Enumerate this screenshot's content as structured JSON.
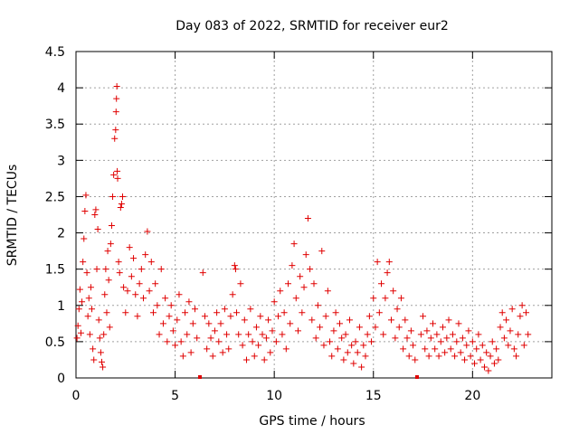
{
  "chart_data": {
    "type": "scatter",
    "title": "Day 083 of 2022, SRMTID for receiver eur2",
    "xlabel": "GPS time / hours",
    "ylabel": "SRMTID / TECUs",
    "xlim": [
      0,
      24
    ],
    "ylim": [
      0,
      4.5
    ],
    "x_ticks": [
      0,
      5,
      10,
      15,
      20
    ],
    "y_ticks": [
      0,
      0.5,
      1,
      1.5,
      2,
      2.5,
      3,
      3.5,
      4,
      4.5
    ],
    "x_tick_labels": [
      "0",
      "5",
      "10",
      "15",
      "20"
    ],
    "y_tick_labels": [
      "0",
      "0.5",
      "1",
      "1.5",
      "2",
      "2.5",
      "3",
      "3.5",
      "4",
      "4.5"
    ],
    "grid": true,
    "marker": "+",
    "series_color": "#e00000",
    "gap_markers_x": [
      6.25,
      17.2
    ],
    "series": [
      {
        "name": "SRMTID",
        "points": [
          [
            0.05,
            0.55
          ],
          [
            0.1,
            0.72
          ],
          [
            0.15,
            0.95
          ],
          [
            0.2,
            1.22
          ],
          [
            0.25,
            0.62
          ],
          [
            0.3,
            1.05
          ],
          [
            0.35,
            1.6
          ],
          [
            0.4,
            1.92
          ],
          [
            0.45,
            2.3
          ],
          [
            0.5,
            2.52
          ],
          [
            0.55,
            1.45
          ],
          [
            0.6,
            0.85
          ],
          [
            0.65,
            1.1
          ],
          [
            0.7,
            0.6
          ],
          [
            0.75,
            1.25
          ],
          [
            0.8,
            0.95
          ],
          [
            0.85,
            0.4
          ],
          [
            0.9,
            0.25
          ],
          [
            0.95,
            2.25
          ],
          [
            1.0,
            2.32
          ],
          [
            1.05,
            1.5
          ],
          [
            1.1,
            2.05
          ],
          [
            1.15,
            0.8
          ],
          [
            1.2,
            0.55
          ],
          [
            1.25,
            0.35
          ],
          [
            1.3,
            0.22
          ],
          [
            1.35,
            0.15
          ],
          [
            1.4,
            0.6
          ],
          [
            1.45,
            1.15
          ],
          [
            1.5,
            1.5
          ],
          [
            1.55,
            0.9
          ],
          [
            1.6,
            1.75
          ],
          [
            1.65,
            1.35
          ],
          [
            1.7,
            0.7
          ],
          [
            1.75,
            1.85
          ],
          [
            1.8,
            2.1
          ],
          [
            1.85,
            2.5
          ],
          [
            1.9,
            2.8
          ],
          [
            1.95,
            3.3
          ],
          [
            2.0,
            3.42
          ],
          [
            2.02,
            3.67
          ],
          [
            2.04,
            3.85
          ],
          [
            2.06,
            4.02
          ],
          [
            2.08,
            2.85
          ],
          [
            2.1,
            2.75
          ],
          [
            2.15,
            1.6
          ],
          [
            2.2,
            1.45
          ],
          [
            2.25,
            2.35
          ],
          [
            2.3,
            2.4
          ],
          [
            2.35,
            2.5
          ],
          [
            2.4,
            1.25
          ],
          [
            2.5,
            0.9
          ],
          [
            2.6,
            1.2
          ],
          [
            2.7,
            1.8
          ],
          [
            2.8,
            1.4
          ],
          [
            2.9,
            1.65
          ],
          [
            3.0,
            1.15
          ],
          [
            3.1,
            0.85
          ],
          [
            3.2,
            1.3
          ],
          [
            3.3,
            1.5
          ],
          [
            3.4,
            1.1
          ],
          [
            3.5,
            1.7
          ],
          [
            3.6,
            2.02
          ],
          [
            3.7,
            1.2
          ],
          [
            3.8,
            1.6
          ],
          [
            3.9,
            0.9
          ],
          [
            4.0,
            1.3
          ],
          [
            4.1,
            1.0
          ],
          [
            4.2,
            0.6
          ],
          [
            4.3,
            1.5
          ],
          [
            4.4,
            0.75
          ],
          [
            4.5,
            1.1
          ],
          [
            4.6,
            0.5
          ],
          [
            4.7,
            0.85
          ],
          [
            4.8,
            1.0
          ],
          [
            4.9,
            0.65
          ],
          [
            5.0,
            0.45
          ],
          [
            5.1,
            0.8
          ],
          [
            5.2,
            1.15
          ],
          [
            5.3,
            0.5
          ],
          [
            5.4,
            0.3
          ],
          [
            5.5,
            0.9
          ],
          [
            5.6,
            0.6
          ],
          [
            5.7,
            1.05
          ],
          [
            5.8,
            0.35
          ],
          [
            5.9,
            0.75
          ],
          [
            6.0,
            0.95
          ],
          [
            6.1,
            0.55
          ],
          [
            6.4,
            1.45
          ],
          [
            6.5,
            0.85
          ],
          [
            6.6,
            0.4
          ],
          [
            6.7,
            0.75
          ],
          [
            6.8,
            0.55
          ],
          [
            6.9,
            0.3
          ],
          [
            7.0,
            0.65
          ],
          [
            7.1,
            0.9
          ],
          [
            7.2,
            0.5
          ],
          [
            7.3,
            0.75
          ],
          [
            7.4,
            0.35
          ],
          [
            7.5,
            0.95
          ],
          [
            7.6,
            0.6
          ],
          [
            7.7,
            0.4
          ],
          [
            7.8,
            0.85
          ],
          [
            7.9,
            1.15
          ],
          [
            8.0,
            1.55
          ],
          [
            8.05,
            1.5
          ],
          [
            8.1,
            0.9
          ],
          [
            8.2,
            0.6
          ],
          [
            8.3,
            1.3
          ],
          [
            8.4,
            0.45
          ],
          [
            8.5,
            0.8
          ],
          [
            8.6,
            0.25
          ],
          [
            8.7,
            0.6
          ],
          [
            8.8,
            0.95
          ],
          [
            8.9,
            0.5
          ],
          [
            9.0,
            0.3
          ],
          [
            9.1,
            0.7
          ],
          [
            9.2,
            0.45
          ],
          [
            9.3,
            0.85
          ],
          [
            9.4,
            0.6
          ],
          [
            9.5,
            0.25
          ],
          [
            9.6,
            0.55
          ],
          [
            9.7,
            0.8
          ],
          [
            9.8,
            0.35
          ],
          [
            9.9,
            0.65
          ],
          [
            10.0,
            1.05
          ],
          [
            10.1,
            0.5
          ],
          [
            10.2,
            0.85
          ],
          [
            10.3,
            1.2
          ],
          [
            10.4,
            0.6
          ],
          [
            10.5,
            0.9
          ],
          [
            10.6,
            0.4
          ],
          [
            10.7,
            1.3
          ],
          [
            10.8,
            0.75
          ],
          [
            10.9,
            1.55
          ],
          [
            11.0,
            1.85
          ],
          [
            11.1,
            1.1
          ],
          [
            11.2,
            0.65
          ],
          [
            11.3,
            1.4
          ],
          [
            11.4,
            0.9
          ],
          [
            11.5,
            1.25
          ],
          [
            11.6,
            1.7
          ],
          [
            11.7,
            2.2
          ],
          [
            11.8,
            1.5
          ],
          [
            11.9,
            0.8
          ],
          [
            12.0,
            1.3
          ],
          [
            12.1,
            0.55
          ],
          [
            12.2,
            1.0
          ],
          [
            12.3,
            0.7
          ],
          [
            12.4,
            1.75
          ],
          [
            12.5,
            0.45
          ],
          [
            12.6,
            0.85
          ],
          [
            12.7,
            1.2
          ],
          [
            12.8,
            0.5
          ],
          [
            12.9,
            0.3
          ],
          [
            13.0,
            0.65
          ],
          [
            13.1,
            0.9
          ],
          [
            13.2,
            0.4
          ],
          [
            13.3,
            0.75
          ],
          [
            13.4,
            0.55
          ],
          [
            13.5,
            0.25
          ],
          [
            13.6,
            0.6
          ],
          [
            13.7,
            0.35
          ],
          [
            13.8,
            0.8
          ],
          [
            13.9,
            0.45
          ],
          [
            14.0,
            0.2
          ],
          [
            14.1,
            0.5
          ],
          [
            14.2,
            0.35
          ],
          [
            14.3,
            0.7
          ],
          [
            14.4,
            0.15
          ],
          [
            14.5,
            0.45
          ],
          [
            14.6,
            0.3
          ],
          [
            14.7,
            0.6
          ],
          [
            14.8,
            0.85
          ],
          [
            14.9,
            0.5
          ],
          [
            15.0,
            1.1
          ],
          [
            15.1,
            0.7
          ],
          [
            15.2,
            1.6
          ],
          [
            15.3,
            0.9
          ],
          [
            15.4,
            1.3
          ],
          [
            15.5,
            0.6
          ],
          [
            15.6,
            1.1
          ],
          [
            15.7,
            1.45
          ],
          [
            15.8,
            1.6
          ],
          [
            15.9,
            0.8
          ],
          [
            16.0,
            1.2
          ],
          [
            16.1,
            0.55
          ],
          [
            16.2,
            0.95
          ],
          [
            16.3,
            0.7
          ],
          [
            16.4,
            1.1
          ],
          [
            16.5,
            0.4
          ],
          [
            16.6,
            0.8
          ],
          [
            16.7,
            0.55
          ],
          [
            16.8,
            0.3
          ],
          [
            16.9,
            0.65
          ],
          [
            17.0,
            0.45
          ],
          [
            17.1,
            0.25
          ],
          [
            17.4,
            0.6
          ],
          [
            17.5,
            0.85
          ],
          [
            17.6,
            0.4
          ],
          [
            17.7,
            0.65
          ],
          [
            17.8,
            0.3
          ],
          [
            17.9,
            0.55
          ],
          [
            18.0,
            0.75
          ],
          [
            18.1,
            0.4
          ],
          [
            18.2,
            0.6
          ],
          [
            18.3,
            0.3
          ],
          [
            18.4,
            0.5
          ],
          [
            18.5,
            0.7
          ],
          [
            18.6,
            0.35
          ],
          [
            18.7,
            0.55
          ],
          [
            18.8,
            0.8
          ],
          [
            18.9,
            0.4
          ],
          [
            19.0,
            0.6
          ],
          [
            19.1,
            0.3
          ],
          [
            19.2,
            0.5
          ],
          [
            19.3,
            0.75
          ],
          [
            19.4,
            0.35
          ],
          [
            19.5,
            0.55
          ],
          [
            19.6,
            0.25
          ],
          [
            19.7,
            0.45
          ],
          [
            19.8,
            0.65
          ],
          [
            19.9,
            0.3
          ],
          [
            20.0,
            0.5
          ],
          [
            20.1,
            0.2
          ],
          [
            20.2,
            0.4
          ],
          [
            20.3,
            0.6
          ],
          [
            20.4,
            0.25
          ],
          [
            20.5,
            0.45
          ],
          [
            20.6,
            0.15
          ],
          [
            20.7,
            0.35
          ],
          [
            20.8,
            0.1
          ],
          [
            20.9,
            0.3
          ],
          [
            21.0,
            0.5
          ],
          [
            21.1,
            0.2
          ],
          [
            21.2,
            0.4
          ],
          [
            21.3,
            0.25
          ],
          [
            21.4,
            0.7
          ],
          [
            21.5,
            0.9
          ],
          [
            21.6,
            0.55
          ],
          [
            21.7,
            0.8
          ],
          [
            21.8,
            0.45
          ],
          [
            21.9,
            0.65
          ],
          [
            22.0,
            0.95
          ],
          [
            22.1,
            0.4
          ],
          [
            22.2,
            0.3
          ],
          [
            22.3,
            0.6
          ],
          [
            22.4,
            0.85
          ],
          [
            22.5,
            1.0
          ],
          [
            22.6,
            0.45
          ],
          [
            22.7,
            0.9
          ],
          [
            22.8,
            0.6
          ]
        ]
      }
    ]
  }
}
